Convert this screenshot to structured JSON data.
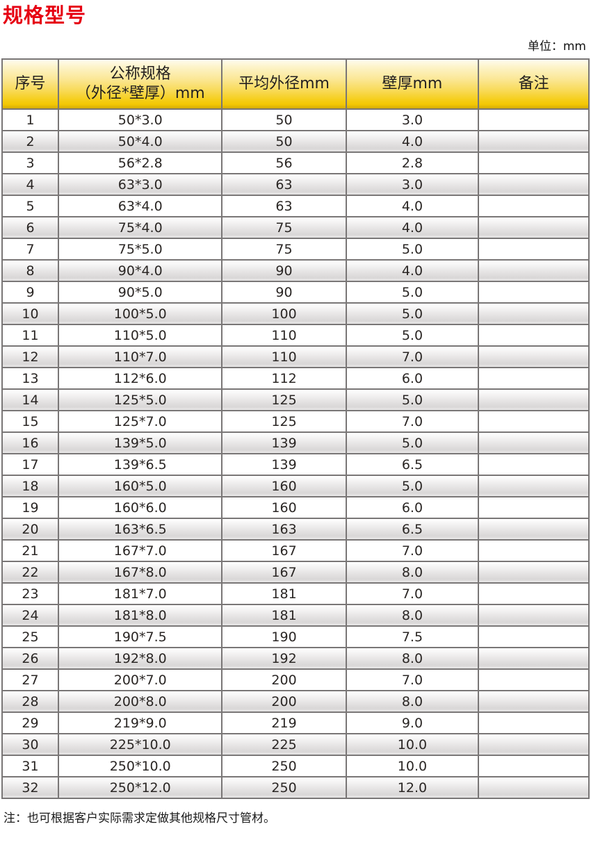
{
  "page": {
    "title": "规格型号",
    "unit_label": "单位：mm",
    "footnote": "注：也可根据客户实际需求定做其他规格尺寸管材。"
  },
  "colors": {
    "title_red": "#e60012",
    "header_gradient_top": "#fdf6d0",
    "header_gradient_bottom": "#f3c703",
    "header_bottom_edge": "#d5ac06",
    "stripe_gray": "#d9d7d7",
    "border_gray": "#797676",
    "text_dark": "#262220"
  },
  "table": {
    "headers": {
      "col1": "序号",
      "col2_line1": "公称规格",
      "col2_line2": "（外径*壁厚）mm",
      "col3": "平均外径mm",
      "col4": "壁厚mm",
      "col5": "备注"
    },
    "rows": [
      {
        "no": "1",
        "spec": "50*3.0",
        "od": "50",
        "wall": "3.0",
        "remark": ""
      },
      {
        "no": "2",
        "spec": "50*4.0",
        "od": "50",
        "wall": "4.0",
        "remark": ""
      },
      {
        "no": "3",
        "spec": "56*2.8",
        "od": "56",
        "wall": "2.8",
        "remark": ""
      },
      {
        "no": "4",
        "spec": "63*3.0",
        "od": "63",
        "wall": "3.0",
        "remark": ""
      },
      {
        "no": "5",
        "spec": "63*4.0",
        "od": "63",
        "wall": "4.0",
        "remark": ""
      },
      {
        "no": "6",
        "spec": "75*4.0",
        "od": "75",
        "wall": "4.0",
        "remark": ""
      },
      {
        "no": "7",
        "spec": "75*5.0",
        "od": "75",
        "wall": "5.0",
        "remark": ""
      },
      {
        "no": "8",
        "spec": "90*4.0",
        "od": "90",
        "wall": "4.0",
        "remark": ""
      },
      {
        "no": "9",
        "spec": "90*5.0",
        "od": "90",
        "wall": "5.0",
        "remark": ""
      },
      {
        "no": "10",
        "spec": "100*5.0",
        "od": "100",
        "wall": "5.0",
        "remark": ""
      },
      {
        "no": "11",
        "spec": "110*5.0",
        "od": "110",
        "wall": "5.0",
        "remark": ""
      },
      {
        "no": "12",
        "spec": "110*7.0",
        "od": "110",
        "wall": "7.0",
        "remark": ""
      },
      {
        "no": "13",
        "spec": "112*6.0",
        "od": "112",
        "wall": "6.0",
        "remark": ""
      },
      {
        "no": "14",
        "spec": "125*5.0",
        "od": "125",
        "wall": "5.0",
        "remark": ""
      },
      {
        "no": "15",
        "spec": "125*7.0",
        "od": "125",
        "wall": "7.0",
        "remark": ""
      },
      {
        "no": "16",
        "spec": "139*5.0",
        "od": "139",
        "wall": "5.0",
        "remark": ""
      },
      {
        "no": "17",
        "spec": "139*6.5",
        "od": "139",
        "wall": "6.5",
        "remark": ""
      },
      {
        "no": "18",
        "spec": "160*5.0",
        "od": "160",
        "wall": "5.0",
        "remark": ""
      },
      {
        "no": "19",
        "spec": "160*6.0",
        "od": "160",
        "wall": "6.0",
        "remark": ""
      },
      {
        "no": "20",
        "spec": "163*6.5",
        "od": "163",
        "wall": "6.5",
        "remark": ""
      },
      {
        "no": "21",
        "spec": "167*7.0",
        "od": "167",
        "wall": "7.0",
        "remark": ""
      },
      {
        "no": "22",
        "spec": "167*8.0",
        "od": "167",
        "wall": "8.0",
        "remark": ""
      },
      {
        "no": "23",
        "spec": "181*7.0",
        "od": "181",
        "wall": "7.0",
        "remark": ""
      },
      {
        "no": "24",
        "spec": "181*8.0",
        "od": "181",
        "wall": "8.0",
        "remark": ""
      },
      {
        "no": "25",
        "spec": "190*7.5",
        "od": "190",
        "wall": "7.5",
        "remark": ""
      },
      {
        "no": "26",
        "spec": "192*8.0",
        "od": "192",
        "wall": "8.0",
        "remark": ""
      },
      {
        "no": "27",
        "spec": "200*7.0",
        "od": "200",
        "wall": "7.0",
        "remark": ""
      },
      {
        "no": "28",
        "spec": "200*8.0",
        "od": "200",
        "wall": "8.0",
        "remark": ""
      },
      {
        "no": "29",
        "spec": "219*9.0",
        "od": "219",
        "wall": "9.0",
        "remark": ""
      },
      {
        "no": "30",
        "spec": "225*10.0",
        "od": "225",
        "wall": "10.0",
        "remark": ""
      },
      {
        "no": "31",
        "spec": "250*10.0",
        "od": "250",
        "wall": "10.0",
        "remark": ""
      },
      {
        "no": "32",
        "spec": "250*12.0",
        "od": "250",
        "wall": "12.0",
        "remark": ""
      }
    ]
  }
}
